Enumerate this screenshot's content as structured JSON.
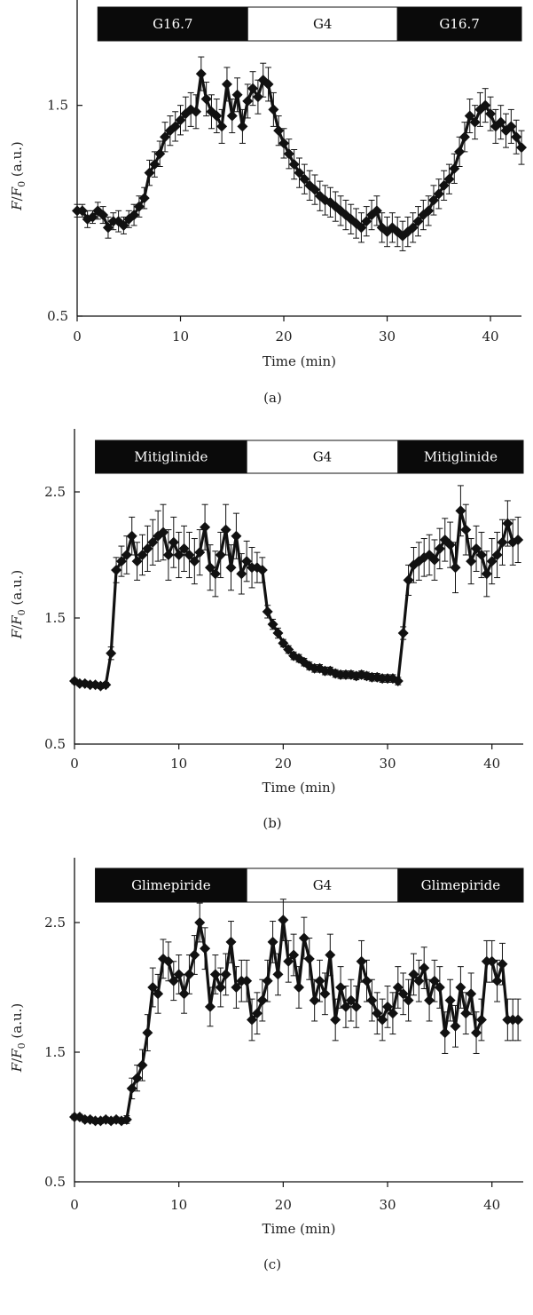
{
  "colors": {
    "ink": "#111111",
    "bar_dark": "#0a0a0a",
    "bar_light": "#ffffff"
  },
  "chart_data": [
    {
      "type": "line",
      "panel_label": "(a)",
      "xlabel": "Time (min)",
      "ylabel": {
        "italic1": "F",
        "sep": "/",
        "italic2": "F",
        "sub": "0",
        "unit": " (a.u.)"
      },
      "xlim": [
        0,
        43
      ],
      "ylim": [
        0.5,
        2.0
      ],
      "xticks": [
        0,
        10,
        20,
        30,
        40
      ],
      "yticks": [
        0.5,
        1.5
      ],
      "conditions": [
        {
          "label": "G16.7",
          "from": 2,
          "to": 16.5,
          "fill": "dark"
        },
        {
          "label": "G4",
          "from": 16.5,
          "to": 31,
          "fill": "light"
        },
        {
          "label": "G16.7",
          "from": 31,
          "to": 43,
          "fill": "dark"
        }
      ],
      "series": [
        {
          "x": [
            0,
            0.5,
            1,
            1.5,
            2,
            2.5,
            3,
            3.5,
            4,
            4.5,
            5,
            5.5,
            6,
            6.5,
            7,
            7.5,
            8,
            8.5,
            9,
            9.5,
            10,
            10.5,
            11,
            11.5,
            12,
            12.5,
            13,
            13.5,
            14,
            14.5,
            15,
            15.5,
            16,
            16.5,
            17,
            17.5,
            18,
            18.5,
            19,
            19.5,
            20,
            20.5,
            21,
            21.5,
            22,
            22.5,
            23,
            23.5,
            24,
            24.5,
            25,
            25.5,
            26,
            26.5,
            27,
            27.5,
            28,
            28.5,
            29,
            29.5,
            30,
            30.5,
            31,
            31.5,
            32,
            32.5,
            33,
            33.5,
            34,
            34.5,
            35,
            35.5,
            36,
            36.5,
            37,
            37.5,
            38,
            38.5,
            39,
            39.5,
            40,
            40.5,
            41,
            41.5,
            42,
            42.5,
            43
          ],
          "y": [
            1.0,
            1.0,
            0.96,
            0.97,
            1.0,
            0.98,
            0.92,
            0.95,
            0.95,
            0.93,
            0.96,
            0.98,
            1.02,
            1.06,
            1.18,
            1.22,
            1.27,
            1.35,
            1.38,
            1.4,
            1.43,
            1.46,
            1.48,
            1.47,
            1.65,
            1.53,
            1.47,
            1.45,
            1.4,
            1.6,
            1.45,
            1.55,
            1.4,
            1.52,
            1.58,
            1.54,
            1.62,
            1.6,
            1.48,
            1.38,
            1.32,
            1.27,
            1.22,
            1.18,
            1.15,
            1.12,
            1.1,
            1.07,
            1.05,
            1.04,
            1.02,
            1.0,
            0.98,
            0.96,
            0.94,
            0.92,
            0.95,
            0.98,
            1.0,
            0.92,
            0.9,
            0.92,
            0.9,
            0.88,
            0.9,
            0.92,
            0.95,
            0.98,
            1.0,
            1.05,
            1.08,
            1.12,
            1.15,
            1.2,
            1.28,
            1.35,
            1.45,
            1.42,
            1.48,
            1.5,
            1.46,
            1.4,
            1.42,
            1.38,
            1.4,
            1.35,
            1.3
          ],
          "err": [
            0.03,
            0.03,
            0.04,
            0.03,
            0.04,
            0.04,
            0.05,
            0.04,
            0.05,
            0.04,
            0.04,
            0.05,
            0.05,
            0.05,
            0.06,
            0.06,
            0.06,
            0.07,
            0.07,
            0.07,
            0.07,
            0.08,
            0.08,
            0.08,
            0.08,
            0.08,
            0.08,
            0.08,
            0.08,
            0.08,
            0.08,
            0.08,
            0.08,
            0.08,
            0.08,
            0.08,
            0.08,
            0.08,
            0.08,
            0.07,
            0.07,
            0.07,
            0.07,
            0.07,
            0.07,
            0.07,
            0.07,
            0.07,
            0.07,
            0.07,
            0.07,
            0.07,
            0.07,
            0.07,
            0.07,
            0.07,
            0.07,
            0.07,
            0.07,
            0.07,
            0.07,
            0.07,
            0.07,
            0.07,
            0.07,
            0.07,
            0.07,
            0.07,
            0.07,
            0.07,
            0.07,
            0.07,
            0.07,
            0.07,
            0.07,
            0.07,
            0.08,
            0.08,
            0.08,
            0.08,
            0.08,
            0.08,
            0.08,
            0.08,
            0.08,
            0.08,
            0.08
          ]
        }
      ]
    },
    {
      "type": "line",
      "panel_label": "(b)",
      "xlabel": "Time (min)",
      "ylabel": {
        "italic1": "F",
        "sep": "/",
        "italic2": "F",
        "sub": "0",
        "unit": " (a.u.)"
      },
      "xlim": [
        0,
        43
      ],
      "ylim": [
        0.5,
        3.0
      ],
      "xticks": [
        0,
        10,
        20,
        30,
        40
      ],
      "yticks": [
        0.5,
        1.5,
        2.5
      ],
      "conditions": [
        {
          "label": "Mitiglinide",
          "from": 2,
          "to": 16.5,
          "fill": "dark"
        },
        {
          "label": "G4",
          "from": 16.5,
          "to": 31,
          "fill": "light"
        },
        {
          "label": "Mitiglinide",
          "from": 31,
          "to": 43,
          "fill": "dark"
        }
      ],
      "series": [
        {
          "x": [
            0,
            0.5,
            1,
            1.5,
            2,
            2.5,
            3,
            3.5,
            4,
            4.5,
            5,
            5.5,
            6,
            6.5,
            7,
            7.5,
            8,
            8.5,
            9,
            9.5,
            10,
            10.5,
            11,
            11.5,
            12,
            12.5,
            13,
            13.5,
            14,
            14.5,
            15,
            15.5,
            16,
            16.5,
            17,
            17.5,
            18,
            18.5,
            19,
            19.5,
            20,
            20.5,
            21,
            21.5,
            22,
            22.5,
            23,
            23.5,
            24,
            24.5,
            25,
            25.5,
            26,
            26.5,
            27,
            27.5,
            28,
            28.5,
            29,
            29.5,
            30,
            30.5,
            31,
            31.5,
            32,
            32.5,
            33,
            33.5,
            34,
            34.5,
            35,
            35.5,
            36,
            36.5,
            37,
            37.5,
            38,
            38.5,
            39,
            39.5,
            40,
            40.5,
            41,
            41.5,
            42,
            42.5
          ],
          "y": [
            1.0,
            0.98,
            0.98,
            0.97,
            0.97,
            0.96,
            0.97,
            1.22,
            1.88,
            1.95,
            2.0,
            2.15,
            1.95,
            2.0,
            2.05,
            2.1,
            2.15,
            2.18,
            2.0,
            2.1,
            2.0,
            2.05,
            2.0,
            1.95,
            2.02,
            2.22,
            1.9,
            1.85,
            2.0,
            2.2,
            1.9,
            2.15,
            1.85,
            1.95,
            1.9,
            1.9,
            1.88,
            1.55,
            1.45,
            1.38,
            1.3,
            1.25,
            1.2,
            1.18,
            1.15,
            1.12,
            1.1,
            1.1,
            1.08,
            1.08,
            1.06,
            1.05,
            1.05,
            1.05,
            1.04,
            1.05,
            1.04,
            1.03,
            1.03,
            1.02,
            1.02,
            1.02,
            1.0,
            1.38,
            1.8,
            1.92,
            1.95,
            1.98,
            2.0,
            1.96,
            2.05,
            2.12,
            2.08,
            1.9,
            2.35,
            2.2,
            1.95,
            2.05,
            2.0,
            1.85,
            1.95,
            2.0,
            2.1,
            2.25,
            2.1,
            2.12
          ],
          "err": [
            0.02,
            0.02,
            0.02,
            0.02,
            0.02,
            0.02,
            0.02,
            0.05,
            0.1,
            0.12,
            0.15,
            0.15,
            0.15,
            0.16,
            0.18,
            0.18,
            0.2,
            0.22,
            0.2,
            0.2,
            0.18,
            0.18,
            0.18,
            0.18,
            0.18,
            0.18,
            0.18,
            0.18,
            0.18,
            0.2,
            0.18,
            0.18,
            0.16,
            0.16,
            0.16,
            0.12,
            0.1,
            0.05,
            0.04,
            0.04,
            0.03,
            0.03,
            0.03,
            0.03,
            0.03,
            0.03,
            0.03,
            0.03,
            0.03,
            0.03,
            0.03,
            0.03,
            0.03,
            0.03,
            0.03,
            0.03,
            0.03,
            0.03,
            0.03,
            0.03,
            0.03,
            0.03,
            0.03,
            0.05,
            0.12,
            0.14,
            0.15,
            0.15,
            0.16,
            0.16,
            0.16,
            0.17,
            0.18,
            0.2,
            0.2,
            0.2,
            0.18,
            0.18,
            0.18,
            0.18,
            0.18,
            0.18,
            0.18,
            0.18,
            0.18,
            0.18
          ]
        }
      ]
    },
    {
      "type": "line",
      "panel_label": "(c)",
      "xlabel": "Time (min)",
      "ylabel": {
        "italic1": "F",
        "sep": "/",
        "italic2": "F",
        "sub": "0",
        "unit": " (a.u.)"
      },
      "xlim": [
        0,
        43
      ],
      "ylim": [
        0.5,
        3.0
      ],
      "xticks": [
        0,
        10,
        20,
        30,
        40
      ],
      "yticks": [
        0.5,
        1.5,
        2.5
      ],
      "conditions": [
        {
          "label": "Glimepiride",
          "from": 2,
          "to": 16.5,
          "fill": "dark"
        },
        {
          "label": "G4",
          "from": 16.5,
          "to": 31,
          "fill": "light"
        },
        {
          "label": "Glimepiride",
          "from": 31,
          "to": 43,
          "fill": "dark"
        }
      ],
      "series": [
        {
          "x": [
            0,
            0.5,
            1,
            1.5,
            2,
            2.5,
            3,
            3.5,
            4,
            4.5,
            5,
            5.5,
            6,
            6.5,
            7,
            7.5,
            8,
            8.5,
            9,
            9.5,
            10,
            10.5,
            11,
            11.5,
            12,
            12.5,
            13,
            13.5,
            14,
            14.5,
            15,
            15.5,
            16,
            16.5,
            17,
            17.5,
            18,
            18.5,
            19,
            19.5,
            20,
            20.5,
            21,
            21.5,
            22,
            22.5,
            23,
            23.5,
            24,
            24.5,
            25,
            25.5,
            26,
            26.5,
            27,
            27.5,
            28,
            28.5,
            29,
            29.5,
            30,
            30.5,
            31,
            31.5,
            32,
            32.5,
            33,
            33.5,
            34,
            34.5,
            35,
            35.5,
            36,
            36.5,
            37,
            37.5,
            38,
            38.5,
            39,
            39.5,
            40,
            40.5,
            41,
            41.5,
            42,
            42.5
          ],
          "y": [
            1.0,
            1.0,
            0.98,
            0.98,
            0.97,
            0.97,
            0.98,
            0.97,
            0.98,
            0.97,
            0.98,
            1.22,
            1.3,
            1.4,
            1.65,
            2.0,
            1.95,
            2.22,
            2.2,
            2.05,
            2.1,
            1.95,
            2.1,
            2.25,
            2.5,
            2.3,
            1.85,
            2.1,
            2.0,
            2.1,
            2.35,
            2.0,
            2.05,
            2.05,
            1.75,
            1.8,
            1.9,
            2.05,
            2.35,
            2.1,
            2.52,
            2.2,
            2.25,
            2.0,
            2.38,
            2.22,
            1.9,
            2.05,
            1.95,
            2.25,
            1.75,
            2.0,
            1.85,
            1.9,
            1.85,
            2.2,
            2.05,
            1.9,
            1.8,
            1.75,
            1.85,
            1.8,
            2.0,
            1.95,
            1.9,
            2.1,
            2.05,
            2.15,
            1.9,
            2.05,
            2.0,
            1.65,
            1.9,
            1.7,
            2.0,
            1.8,
            1.95,
            1.65,
            1.75,
            2.2,
            2.2,
            2.05,
            2.18,
            1.75,
            1.75,
            1.75
          ],
          "err": [
            0.02,
            0.02,
            0.02,
            0.02,
            0.02,
            0.02,
            0.02,
            0.02,
            0.02,
            0.02,
            0.03,
            0.08,
            0.1,
            0.12,
            0.14,
            0.15,
            0.15,
            0.15,
            0.15,
            0.15,
            0.15,
            0.15,
            0.15,
            0.15,
            0.15,
            0.16,
            0.15,
            0.15,
            0.15,
            0.16,
            0.16,
            0.16,
            0.16,
            0.16,
            0.16,
            0.16,
            0.16,
            0.16,
            0.16,
            0.16,
            0.16,
            0.16,
            0.16,
            0.16,
            0.16,
            0.16,
            0.16,
            0.16,
            0.16,
            0.16,
            0.16,
            0.16,
            0.16,
            0.16,
            0.16,
            0.16,
            0.16,
            0.16,
            0.16,
            0.16,
            0.16,
            0.16,
            0.16,
            0.16,
            0.16,
            0.16,
            0.16,
            0.16,
            0.16,
            0.16,
            0.16,
            0.16,
            0.16,
            0.16,
            0.16,
            0.16,
            0.16,
            0.16,
            0.16,
            0.16,
            0.16,
            0.16,
            0.16,
            0.16,
            0.16,
            0.16
          ]
        }
      ]
    }
  ]
}
